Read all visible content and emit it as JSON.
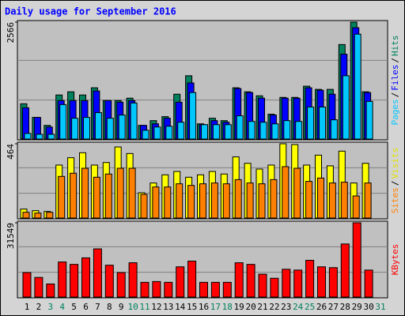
{
  "chart_data": {
    "type": "bar",
    "title": "Daily usage for September 2016",
    "categories": [
      "1",
      "2",
      "3",
      "4",
      "5",
      "6",
      "7",
      "8",
      "9",
      "10",
      "11",
      "12",
      "13",
      "14",
      "15",
      "16",
      "17",
      "18",
      "19",
      "20",
      "21",
      "22",
      "23",
      "24",
      "25",
      "26",
      "27",
      "28",
      "29",
      "30",
      "31"
    ],
    "category_colors": [
      "#000000",
      "#000000",
      "#00805c",
      "#00805c",
      "#000000",
      "#000000",
      "#000000",
      "#000000",
      "#000000",
      "#00805c",
      "#00805c",
      "#000000",
      "#000000",
      "#000000",
      "#000000",
      "#000000",
      "#00805c",
      "#00805c",
      "#000000",
      "#000000",
      "#000000",
      "#000000",
      "#000000",
      "#00805c",
      "#00805c",
      "#000000",
      "#000000",
      "#000000",
      "#000000",
      "#000000",
      "#00805c"
    ],
    "panels": [
      {
        "ylim": [
          0,
          2566
        ],
        "yticks": [
          2566
        ],
        "ylabel_parts": [
          {
            "text": "Pages",
            "color": "#00c8ff"
          },
          {
            "text": "/",
            "color": "#000000"
          },
          {
            "text": "Files",
            "color": "#0000ff"
          },
          {
            "text": "/",
            "color": "#000000"
          },
          {
            "text": "Hits",
            "color": "#00805c"
          }
        ],
        "series": [
          {
            "color": "#00805c",
            "values": [
              774,
              475,
              300,
              967,
              1037,
              967,
              1125,
              844,
              844,
              897,
              300,
              404,
              492,
              984,
              1389,
              334,
              457,
              404,
              1125,
              1037,
              949,
              545,
              914,
              914,
              1160,
              1090,
              1090,
              2074,
              2566,
              1037,
              null
            ]
          },
          {
            "color": "#0000ff",
            "values": [
              686,
              475,
              264,
              844,
              844,
              844,
              1055,
              844,
              809,
              844,
              300,
              334,
              457,
              809,
              1231,
              316,
              404,
              369,
              1108,
              1020,
              897,
              527,
              897,
              897,
              1125,
              1072,
              984,
              1863,
              2443,
              1020,
              null
            ]
          },
          {
            "color": "#00c8ff",
            "values": [
              123,
              105,
              105,
              756,
              457,
              475,
              580,
              457,
              527,
              791,
              193,
              264,
              281,
              369,
              1020,
              316,
              316,
              316,
              510,
              387,
              369,
              334,
              404,
              387,
              703,
              703,
              422,
              1389,
              2302,
              826,
              null
            ]
          }
        ]
      },
      {
        "ylim": [
          0,
          464
        ],
        "yticks": [
          464
        ],
        "ylabel_parts": [
          {
            "text": "Sites",
            "color": "#ff8000"
          },
          {
            "text": "/",
            "color": "#000000"
          },
          {
            "text": "Visits",
            "color": "#e0e000"
          }
        ],
        "series": [
          {
            "color": "#ffff00",
            "values": [
              56,
              46,
              41,
              331,
              377,
              408,
              331,
              347,
              444,
              403,
              158,
              219,
              270,
              291,
              255,
              270,
              291,
              275,
              382,
              342,
              306,
              331,
              464,
              459,
              331,
              393,
              326,
              418,
              219,
              342,
              null
            ]
          },
          {
            "color": "#ff8000",
            "values": [
              36,
              31,
              36,
              260,
              280,
              311,
              255,
              275,
              311,
              311,
              148,
              194,
              194,
              214,
              204,
              214,
              219,
              214,
              240,
              219,
              214,
              240,
              321,
              311,
              229,
              250,
              219,
              224,
              138,
              219,
              null
            ]
          }
        ]
      },
      {
        "ylim": [
          0,
          31549
        ],
        "yticks": [
          31549
        ],
        "ylabel_parts": [
          {
            "text": "KBytes",
            "color": "#ff0000"
          }
        ],
        "series": [
          {
            "color": "#ff0000",
            "values": [
              10400,
              8330,
              5550,
              14900,
              13880,
              16650,
              20470,
              13530,
              10400,
              14570,
              6250,
              6590,
              6250,
              12840,
              15270,
              6250,
              6250,
              6250,
              14570,
              13880,
              9710,
              7980,
              11800,
              11450,
              15610,
              12840,
              12490,
              22550,
              31549,
              11450,
              null
            ]
          }
        ]
      }
    ]
  }
}
